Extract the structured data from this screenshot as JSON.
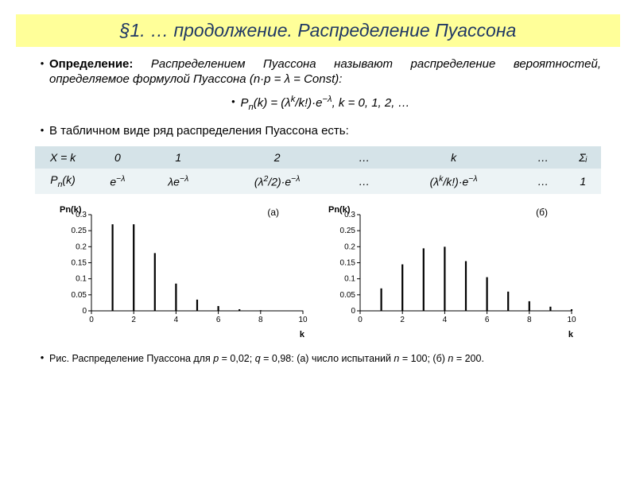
{
  "title": "§1. … продолжение. Распределение Пуассона",
  "definition": {
    "bold": "Определение:",
    "text": " Распределением Пуассона называют распределение вероятностей, определяемое формулой Пуассона (n·p = λ = Const):"
  },
  "formula_html": "P<sub>n</sub>(k) = (λ<sup>k</sup>/k!)·e<sup>−λ</sup>, k = 0, 1, 2, …",
  "table_intro": "В табличном виде ряд распределения Пуассона есть:",
  "table": {
    "header": [
      "X = k",
      "0",
      "1",
      "2",
      "…",
      "k",
      "…",
      "Σᵢ"
    ],
    "row_label_html": "P<sub>n</sub>(k)",
    "row_cells_html": [
      "e<sup>−λ</sup>",
      "λe<sup>−λ</sup>",
      "(λ<sup>2</sup>/2)·e<sup>−λ</sup>",
      "…",
      "(λ<sup>k</sup>/k!)·e<sup>−λ</sup>",
      "…",
      "1"
    ]
  },
  "chart_a": {
    "ylabel": "Pn(k)",
    "xlabel": "k",
    "tag": "(а)",
    "xlim": [
      0,
      10
    ],
    "xtick_step": 2,
    "ylim": [
      0,
      0.3
    ],
    "ytick_step": 0.05,
    "ytick_labels": [
      "0",
      "0.05",
      "0.1",
      "0.15",
      "0.2",
      "0.25",
      "0.3"
    ],
    "x": [
      1,
      2,
      3,
      4,
      5,
      6,
      7,
      8,
      9,
      10
    ],
    "y": [
      0.27,
      0.27,
      0.18,
      0.085,
      0.035,
      0.015,
      0.005,
      0.002,
      0.001,
      0.0005
    ],
    "axis_color": "#000000",
    "bar_color": "#000000",
    "background": "#ffffff",
    "bar_width": 2.2
  },
  "chart_b": {
    "ylabel": "Pn(k)",
    "xlabel": "k",
    "tag": "(б)",
    "xlim": [
      0,
      10
    ],
    "xtick_step": 2,
    "ylim": [
      0,
      0.3
    ],
    "ytick_step": 0.05,
    "ytick_labels": [
      "0",
      "0.05",
      "0.1",
      "0.15",
      "0.2",
      "0.25",
      "0.3"
    ],
    "x": [
      1,
      2,
      3,
      4,
      5,
      6,
      7,
      8,
      9,
      10
    ],
    "y": [
      0.07,
      0.145,
      0.195,
      0.2,
      0.155,
      0.105,
      0.06,
      0.03,
      0.013,
      0.005
    ],
    "axis_color": "#000000",
    "bar_color": "#000000",
    "background": "#ffffff",
    "bar_width": 2.2
  },
  "caption_html": "Рис. Распределение Пуассона для <i>p</i> = 0,02; <i>q</i> = 0,98: (а) число испытаний <i>n</i> = 100; (б) <i>n</i> = 200."
}
